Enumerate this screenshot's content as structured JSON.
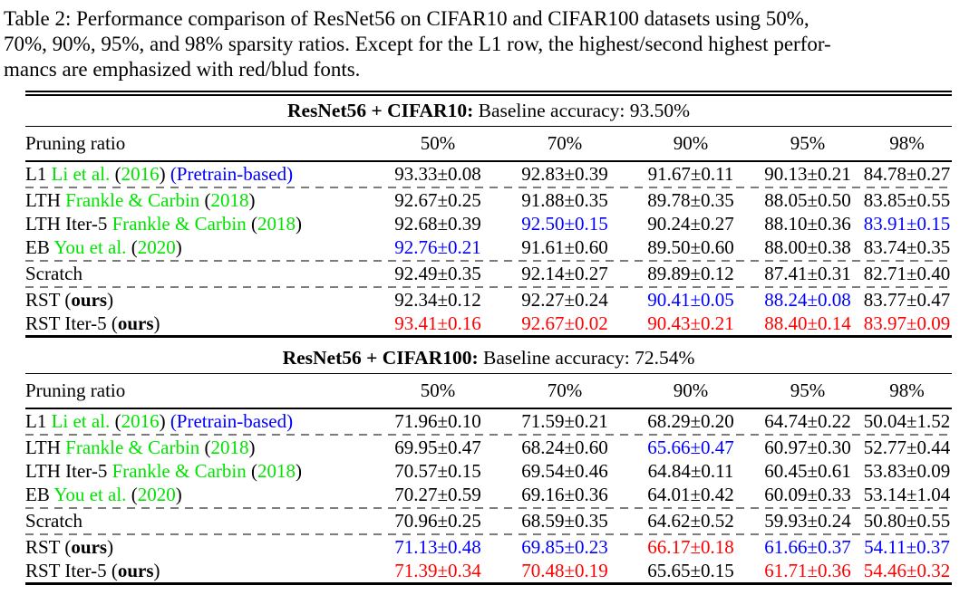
{
  "caption": {
    "lines": [
      "Table 2:  Performance comparison of ResNet56 on CIFAR10 and CIFAR100 datasets using 50%,",
      "70%, 90%, 95%, and 98% sparsity ratios. Except for the L1 row, the highest/second highest perfor-",
      "mancs are emphasized with red/blud fonts."
    ]
  },
  "colors": {
    "best_red": "#ff0000",
    "second_blue": "#0000ff",
    "citation_green": "#00e400",
    "pretrain_blue": "#0000ff",
    "dash_gray": "#7d7d7d",
    "text": "#000000"
  },
  "tables": [
    {
      "title_bold": "ResNet56 + CIFAR10:",
      "title_rest": " Baseline accuracy: 93.50%",
      "col_header": "Pruning ratio",
      "ratios": [
        "50%",
        "70%",
        "90%",
        "95%",
        "98%"
      ],
      "rows": [
        {
          "label": [
            {
              "t": "L1 ",
              "c": "k"
            },
            {
              "t": "Li et al.",
              "c": "g"
            },
            {
              "t": " (",
              "c": "k"
            },
            {
              "t": "2016",
              "c": "g"
            },
            {
              "t": ") ",
              "c": "k"
            },
            {
              "t": "(Pretrain-based)",
              "c": "b"
            }
          ],
          "values": [
            {
              "t": "93.33±0.08",
              "c": "k"
            },
            {
              "t": "92.83±0.39",
              "c": "k"
            },
            {
              "t": "91.67±0.11",
              "c": "k"
            },
            {
              "t": "90.13±0.21",
              "c": "k"
            },
            {
              "t": "84.78±0.27",
              "c": "k"
            }
          ],
          "dash_after": true
        },
        {
          "label": [
            {
              "t": "LTH ",
              "c": "k"
            },
            {
              "t": "Frankle & Carbin",
              "c": "g"
            },
            {
              "t": " (",
              "c": "k"
            },
            {
              "t": "2018",
              "c": "g"
            },
            {
              "t": ")",
              "c": "k"
            }
          ],
          "values": [
            {
              "t": "92.67±0.25",
              "c": "k"
            },
            {
              "t": "91.88±0.35",
              "c": "k"
            },
            {
              "t": "89.78±0.35",
              "c": "k"
            },
            {
              "t": "88.05±0.50",
              "c": "k"
            },
            {
              "t": "83.85±0.55",
              "c": "k"
            }
          ],
          "dash_after": false
        },
        {
          "label": [
            {
              "t": "LTH Iter-5 ",
              "c": "k"
            },
            {
              "t": "Frankle & Carbin",
              "c": "g"
            },
            {
              "t": " (",
              "c": "k"
            },
            {
              "t": "2018",
              "c": "g"
            },
            {
              "t": ")",
              "c": "k"
            }
          ],
          "values": [
            {
              "t": "92.68±0.39",
              "c": "k"
            },
            {
              "t": "92.50±0.15",
              "c": "b"
            },
            {
              "t": "90.24±0.27",
              "c": "k"
            },
            {
              "t": "88.10±0.36",
              "c": "k"
            },
            {
              "t": "83.91±0.15",
              "c": "b"
            }
          ],
          "dash_after": false
        },
        {
          "label": [
            {
              "t": "EB ",
              "c": "k"
            },
            {
              "t": "You et al.",
              "c": "g"
            },
            {
              "t": " (",
              "c": "k"
            },
            {
              "t": "2020",
              "c": "g"
            },
            {
              "t": ")",
              "c": "k"
            }
          ],
          "values": [
            {
              "t": "92.76±0.21",
              "c": "b"
            },
            {
              "t": "91.61±0.60",
              "c": "k"
            },
            {
              "t": "89.50±0.60",
              "c": "k"
            },
            {
              "t": "88.00±0.38",
              "c": "k"
            },
            {
              "t": "83.74±0.35",
              "c": "k"
            }
          ],
          "dash_after": true
        },
        {
          "label": [
            {
              "t": "Scratch",
              "c": "k"
            }
          ],
          "values": [
            {
              "t": "92.49±0.35",
              "c": "k"
            },
            {
              "t": "92.14±0.27",
              "c": "k"
            },
            {
              "t": "89.89±0.12",
              "c": "k"
            },
            {
              "t": "87.41±0.31",
              "c": "k"
            },
            {
              "t": "82.71±0.40",
              "c": "k"
            }
          ],
          "dash_after": true
        },
        {
          "label": [
            {
              "t": "RST (",
              "c": "k"
            },
            {
              "t": "ours",
              "c": "bold"
            },
            {
              "t": ")",
              "c": "k"
            }
          ],
          "values": [
            {
              "t": "92.34±0.12",
              "c": "k"
            },
            {
              "t": "92.27±0.24",
              "c": "k"
            },
            {
              "t": "90.41±0.05",
              "c": "b"
            },
            {
              "t": "88.24±0.08",
              "c": "b"
            },
            {
              "t": "83.77±0.47",
              "c": "k"
            }
          ],
          "dash_after": false
        },
        {
          "label": [
            {
              "t": "RST Iter-5 (",
              "c": "k"
            },
            {
              "t": "ours",
              "c": "bold"
            },
            {
              "t": ")",
              "c": "k"
            }
          ],
          "values": [
            {
              "t": "93.41±0.16",
              "c": "r"
            },
            {
              "t": "92.67±0.02",
              "c": "r"
            },
            {
              "t": "90.43±0.21",
              "c": "r"
            },
            {
              "t": "88.40±0.14",
              "c": "r"
            },
            {
              "t": "83.97±0.09",
              "c": "r"
            }
          ],
          "dash_after": false
        }
      ]
    },
    {
      "title_bold": "ResNet56 + CIFAR100:",
      "title_rest": " Baseline accuracy: 72.54%",
      "col_header": "Pruning ratio",
      "ratios": [
        "50%",
        "70%",
        "90%",
        "95%",
        "98%"
      ],
      "rows": [
        {
          "label": [
            {
              "t": "L1 ",
              "c": "k"
            },
            {
              "t": "Li et al.",
              "c": "g"
            },
            {
              "t": " (",
              "c": "k"
            },
            {
              "t": "2016",
              "c": "g"
            },
            {
              "t": ") ",
              "c": "k"
            },
            {
              "t": "(Pretrain-based)",
              "c": "b"
            }
          ],
          "values": [
            {
              "t": "71.96±0.10",
              "c": "k"
            },
            {
              "t": "71.59±0.21",
              "c": "k"
            },
            {
              "t": "68.29±0.20",
              "c": "k"
            },
            {
              "t": "64.74±0.22",
              "c": "k"
            },
            {
              "t": "50.04±1.52",
              "c": "k"
            }
          ],
          "dash_after": true
        },
        {
          "label": [
            {
              "t": "LTH ",
              "c": "k"
            },
            {
              "t": "Frankle & Carbin",
              "c": "g"
            },
            {
              "t": " (",
              "c": "k"
            },
            {
              "t": "2018",
              "c": "g"
            },
            {
              "t": ")",
              "c": "k"
            }
          ],
          "values": [
            {
              "t": "69.95±0.47",
              "c": "k"
            },
            {
              "t": "68.24±0.60",
              "c": "k"
            },
            {
              "t": "65.66±0.47",
              "c": "b"
            },
            {
              "t": "60.97±0.30",
              "c": "k"
            },
            {
              "t": "52.77±0.44",
              "c": "k"
            }
          ],
          "dash_after": false
        },
        {
          "label": [
            {
              "t": "LTH Iter-5 ",
              "c": "k"
            },
            {
              "t": "Frankle & Carbin",
              "c": "g"
            },
            {
              "t": " (",
              "c": "k"
            },
            {
              "t": "2018",
              "c": "g"
            },
            {
              "t": ")",
              "c": "k"
            }
          ],
          "values": [
            {
              "t": "70.57±0.15",
              "c": "k"
            },
            {
              "t": "69.54±0.46",
              "c": "k"
            },
            {
              "t": "64.84±0.11",
              "c": "k"
            },
            {
              "t": "60.45±0.61",
              "c": "k"
            },
            {
              "t": "53.83±0.09",
              "c": "k"
            }
          ],
          "dash_after": false
        },
        {
          "label": [
            {
              "t": "EB ",
              "c": "k"
            },
            {
              "t": "You et al.",
              "c": "g"
            },
            {
              "t": " (",
              "c": "k"
            },
            {
              "t": "2020",
              "c": "g"
            },
            {
              "t": ")",
              "c": "k"
            }
          ],
          "values": [
            {
              "t": "70.27±0.59",
              "c": "k"
            },
            {
              "t": "69.16±0.36",
              "c": "k"
            },
            {
              "t": "64.01±0.42",
              "c": "k"
            },
            {
              "t": "60.09±0.33",
              "c": "k"
            },
            {
              "t": "53.14±1.04",
              "c": "k"
            }
          ],
          "dash_after": true
        },
        {
          "label": [
            {
              "t": "Scratch",
              "c": "k"
            }
          ],
          "values": [
            {
              "t": "70.96±0.25",
              "c": "k"
            },
            {
              "t": "68.59±0.35",
              "c": "k"
            },
            {
              "t": "64.62±0.52",
              "c": "k"
            },
            {
              "t": "59.93±0.24",
              "c": "k"
            },
            {
              "t": "50.80±0.55",
              "c": "k"
            }
          ],
          "dash_after": true
        },
        {
          "label": [
            {
              "t": "RST (",
              "c": "k"
            },
            {
              "t": "ours",
              "c": "bold"
            },
            {
              "t": ")",
              "c": "k"
            }
          ],
          "values": [
            {
              "t": "71.13±0.48",
              "c": "b"
            },
            {
              "t": "69.85±0.23",
              "c": "b"
            },
            {
              "t": "66.17±0.18",
              "c": "r"
            },
            {
              "t": "61.66±0.37",
              "c": "b"
            },
            {
              "t": "54.11±0.37",
              "c": "b"
            }
          ],
          "dash_after": false
        },
        {
          "label": [
            {
              "t": "RST Iter-5 (",
              "c": "k"
            },
            {
              "t": "ours",
              "c": "bold"
            },
            {
              "t": ")",
              "c": "k"
            }
          ],
          "values": [
            {
              "t": "71.39±0.34",
              "c": "r"
            },
            {
              "t": "70.48±0.19",
              "c": "r"
            },
            {
              "t": "65.65±0.15",
              "c": "k"
            },
            {
              "t": "61.71±0.36",
              "c": "r"
            },
            {
              "t": "54.46±0.32",
              "c": "r"
            }
          ],
          "dash_after": false
        }
      ]
    }
  ]
}
